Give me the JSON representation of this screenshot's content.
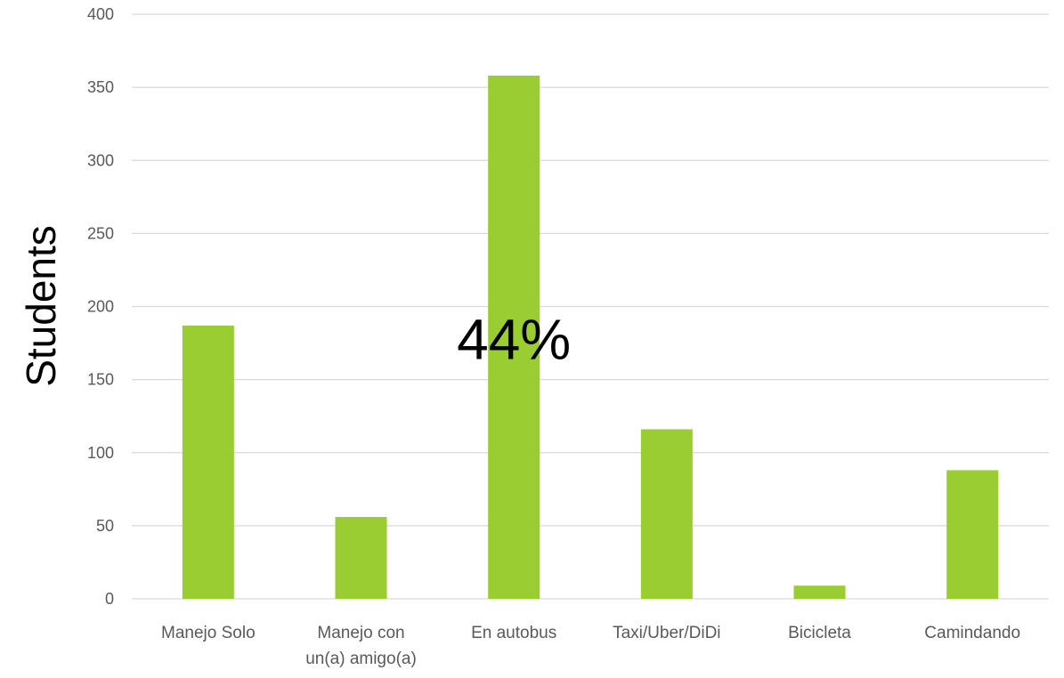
{
  "chart_data": {
    "type": "bar",
    "title": "",
    "xlabel": "",
    "ylabel": "Students",
    "categories": [
      "Manejo Solo",
      "Manejo con un(a) amigo(a)",
      "En autobus",
      "Taxi/Uber/DiDi",
      "Bicicleta",
      "Camindando"
    ],
    "category_lines": [
      [
        "Manejo Solo"
      ],
      [
        "Manejo con",
        "un(a) amigo(a)"
      ],
      [
        "En autobus"
      ],
      [
        "Taxi/Uber/DiDi"
      ],
      [
        "Bicicleta"
      ],
      [
        "Camindando"
      ]
    ],
    "values": [
      187,
      56,
      358,
      116,
      9,
      88
    ],
    "ylim": [
      0,
      400
    ],
    "yticks": [
      0,
      50,
      100,
      150,
      200,
      250,
      300,
      350,
      400
    ],
    "grid": true,
    "legend": "none",
    "bar_color": "#9ACD32",
    "annotations": [
      {
        "text": "44%",
        "category": "En autobus",
        "y": 178
      }
    ]
  }
}
